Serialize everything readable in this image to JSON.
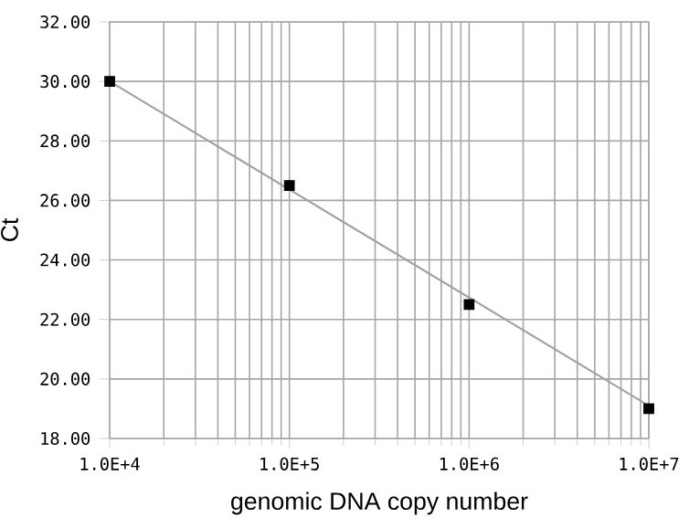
{
  "chart_data": {
    "type": "scatter",
    "xlabel": "genomic DNA copy number",
    "ylabel": "Ct",
    "log": "x",
    "grid": true,
    "xlim": [
      10000,
      10000000
    ],
    "xticks": [
      {
        "value": 10000,
        "label": "1.0E+4"
      },
      {
        "value": 100000,
        "label": "1.0E+5"
      },
      {
        "value": 1000000,
        "label": "1.0E+6"
      },
      {
        "value": 10000000,
        "label": "1.0E+7"
      }
    ],
    "ylim": [
      18,
      32
    ],
    "yticks": [
      {
        "value": 18,
        "label": "18.00"
      },
      {
        "value": 20,
        "label": "20.00"
      },
      {
        "value": 22,
        "label": "22.00"
      },
      {
        "value": 24,
        "label": "24.00"
      },
      {
        "value": 26,
        "label": "26.00"
      },
      {
        "value": 28,
        "label": "28.00"
      },
      {
        "value": 30,
        "label": "30.00"
      },
      {
        "value": 32,
        "label": "32.00"
      }
    ],
    "series": [
      {
        "type": "line",
        "color": "#a0a0a0",
        "marker": "none",
        "line_style": "solid",
        "x": [
          10000,
          10000000
        ],
        "values": [
          30.0,
          19.1
        ]
      },
      {
        "color": "#000000",
        "marker": "square",
        "x": [
          10000,
          100000,
          1000000,
          10000000
        ],
        "values": [
          30.0,
          26.5,
          22.5,
          19.0
        ]
      }
    ]
  }
}
